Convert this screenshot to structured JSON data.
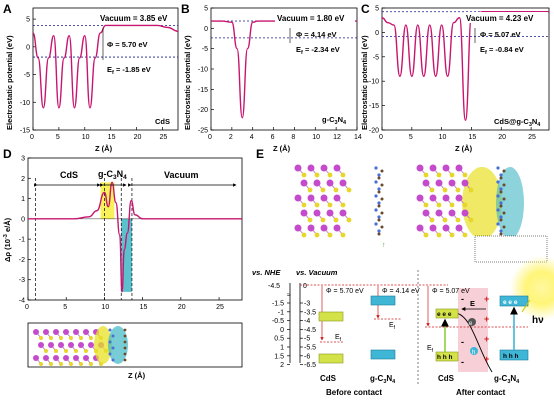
{
  "panels": {
    "A": {
      "letter": "A",
      "xlabel": "Z (Å)",
      "ylabel": "Electrostatic potential (eV)",
      "vacuum_label": "Vacuum = 3.85 eV",
      "phi_label": "Φ = 5.70 eV",
      "ef_label": "E",
      "ef_sub": "f",
      "ef_val": " = -1.85 eV",
      "corner_label": "CdS",
      "xticks": [
        "0",
        "5",
        "10",
        "15",
        "20",
        "25"
      ],
      "yticks": [
        "5",
        "0",
        "-5",
        "-10",
        "-15"
      ]
    },
    "B": {
      "letter": "B",
      "xlabel": "Z (Å)",
      "ylabel": "Electrostatic potential (eV)",
      "vacuum_label": "Vacuum = 1.80 eV",
      "phi_label": "Φ = 4.14 eV",
      "ef_label": "E",
      "ef_sub": "f",
      "ef_val": " = -2.34 eV",
      "corner_label_main": "g-C",
      "corner_sub1": "3",
      "corner_mid": "N",
      "corner_sub2": "4",
      "xticks": [
        "0",
        "2",
        "4",
        "6",
        "8",
        "10",
        "12",
        "14"
      ],
      "yticks": [
        "5",
        "0",
        "-5",
        "-10",
        "-15",
        "-20",
        "-25"
      ]
    },
    "C": {
      "letter": "C",
      "xlabel": "Z (Å)",
      "ylabel": "Electrostatic potential (eV)",
      "vacuum_label": "Vacuum = 4.23 eV",
      "phi_label": "Φ = 5.07 eV",
      "ef_label": "E",
      "ef_sub": "f",
      "ef_val": " = -0.84 eV",
      "corner_label_main": "CdS@g-C",
      "corner_sub1": "3",
      "corner_mid": "N",
      "corner_sub2": "4",
      "xticks": [
        "0",
        "5",
        "10",
        "15",
        "20",
        "25"
      ],
      "yticks": [
        "5",
        "0",
        "-5",
        "-10",
        "-15",
        "-20"
      ]
    },
    "D": {
      "letter": "D",
      "xlabel": "Z (Å)",
      "ylabel": "Δρ (10",
      "ylabel_sup": "-3",
      "ylabel_end": " e/Å)",
      "region_cds": "CdS",
      "region_gcn_main": "g-C",
      "region_gcn_sub1": "3",
      "region_gcn_mid": "N",
      "region_gcn_sub2": "4",
      "region_vac": "Vacuum",
      "xticks": [
        "0",
        "5",
        "10",
        "15",
        "20",
        "25"
      ],
      "yticks": [
        "3",
        "2",
        "1",
        "0",
        "-1",
        "-2",
        "-3",
        "-4"
      ]
    },
    "E": {
      "letter": "E",
      "vs_nhe": "vs. NHE",
      "vs_vac": "vs. Vacuum",
      "nhe_ticks": [
        "-1.5",
        "-1",
        "-0.5",
        "0",
        "0.5",
        "1",
        "1.5",
        "2"
      ],
      "vac_ticks": [
        "-3",
        "-3.5",
        "-4",
        "-4.5",
        "-5",
        "-5.5",
        "-6",
        "-6.5"
      ],
      "top_left": "-4.5",
      "top_right": "0",
      "phi_cds": "Φ = 5.70 eV",
      "phi_gcn": "Φ = 4.14 eV",
      "phi_after": "Φ = 5.07 eV",
      "ef": "E",
      "ef_sub": "f",
      "e_field": "E",
      "cds_label": "CdS",
      "gcn_main": "g-C",
      "gcn_sub1": "3",
      "gcn_mid": "N",
      "gcn_sub2": "4",
      "before": "Before contact",
      "after": "After contact",
      "electrons": "e e e",
      "holes": "h h h",
      "hv": "hν",
      "e_symbol": "e",
      "h_symbol": "h",
      "plus": "+",
      "minus": "-"
    }
  },
  "colors": {
    "curve": "#c8156f",
    "axis": "#000000",
    "highlight_yellow": "#f7ee3a",
    "highlight_cyan": "#3fb6c4",
    "dash": "#1a1a8c",
    "red": "#d11c1c"
  },
  "chart_data": [
    {
      "type": "line",
      "panel": "A",
      "x": [
        0,
        1,
        2,
        3,
        4,
        5,
        6,
        7,
        8,
        9,
        10,
        11,
        12,
        13,
        14,
        15,
        16,
        17,
        18,
        19,
        20,
        22,
        24,
        26,
        28
      ],
      "values": [
        2.5,
        -2,
        -11,
        -2,
        2,
        -11,
        -2,
        2,
        -11,
        -2,
        2,
        -11,
        -2,
        2.5,
        3.85,
        3.85,
        3.85,
        3.85,
        3.85,
        3.85,
        3.85,
        3.85,
        3.85,
        3.5,
        2.8
      ],
      "xlim": [
        0,
        28
      ],
      "ylim": [
        -15,
        7
      ],
      "vacuum": 3.85,
      "ef": -1.85
    },
    {
      "type": "line",
      "panel": "B",
      "x": [
        0,
        1,
        2,
        2.5,
        3,
        3.5,
        4,
        4.5,
        5,
        6,
        8,
        10,
        12,
        14
      ],
      "values": [
        1.8,
        1.8,
        1.5,
        -5,
        -22,
        -5,
        1.5,
        1.8,
        1.8,
        1.8,
        1.8,
        1.8,
        1.8,
        1.8
      ],
      "xlim": [
        0,
        14
      ],
      "ylim": [
        -25,
        5
      ],
      "vacuum": 1.8,
      "ef": -2.34
    },
    {
      "type": "line",
      "panel": "C",
      "x": [
        0,
        1,
        2,
        3,
        4,
        5,
        6,
        7,
        8,
        9,
        10,
        11,
        12,
        13,
        14,
        15,
        16,
        17,
        18,
        20,
        22,
        24,
        26,
        28
      ],
      "values": [
        3,
        2,
        1.5,
        -9,
        1.5,
        -9,
        1.5,
        -9,
        1.5,
        -9,
        1.5,
        -9,
        2,
        3,
        -18,
        3,
        4,
        4.23,
        4.23,
        4.23,
        4.23,
        4.23,
        4.23,
        4.23
      ],
      "xlim": [
        0,
        28
      ],
      "ylim": [
        -20,
        5
      ],
      "vacuum": 4.23,
      "ef": -0.84
    },
    {
      "type": "line",
      "panel": "D",
      "x": [
        0,
        2,
        4,
        6,
        8,
        9,
        10,
        10.5,
        11,
        11.5,
        12,
        12.3,
        12.6,
        13,
        13.5,
        14,
        15,
        16,
        18,
        20,
        22,
        24,
        26,
        28
      ],
      "values": [
        0,
        0,
        0,
        0,
        0.1,
        0.4,
        1.3,
        0.6,
        1.8,
        0.8,
        -0.8,
        -3.6,
        -1.5,
        -0.7,
        0.9,
        0.2,
        0,
        0,
        0,
        0,
        0,
        0,
        0,
        0
      ],
      "xlim": [
        0,
        28
      ],
      "ylim": [
        -4,
        3
      ]
    }
  ]
}
